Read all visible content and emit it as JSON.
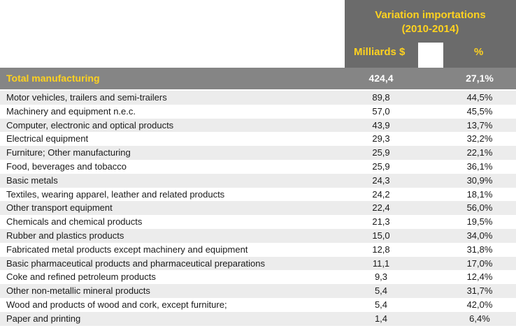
{
  "header": {
    "title_line1": "Variation importations",
    "title_line2": "(2010-2014)",
    "col_value": "Milliards $",
    "col_pct": "%"
  },
  "total": {
    "label": "Total manufacturing",
    "value": "424,4",
    "pct": "27,1%"
  },
  "rows": [
    {
      "label": "Motor vehicles, trailers and semi-trailers",
      "value": "89,8",
      "pct": "44,5%"
    },
    {
      "label": "Machinery and equipment n.e.c.",
      "value": "57,0",
      "pct": "45,5%"
    },
    {
      "label": "Computer, electronic and optical products",
      "value": "43,9",
      "pct": "13,7%"
    },
    {
      "label": "Electrical equipment",
      "value": "29,3",
      "pct": "32,2%"
    },
    {
      "label": "Furniture; Other manufacturing",
      "value": "25,9",
      "pct": "22,1%"
    },
    {
      "label": "Food, beverages and tobacco",
      "value": "25,9",
      "pct": "36,1%"
    },
    {
      "label": "Basic metals",
      "value": "24,3",
      "pct": "30,9%"
    },
    {
      "label": "Textiles, wearing apparel, leather and related products",
      "value": "24,2",
      "pct": "18,1%"
    },
    {
      "label": "Other transport equipment",
      "value": "22,4",
      "pct": "56,0%"
    },
    {
      "label": "Chemicals and chemical products",
      "value": "21,3",
      "pct": "19,5%"
    },
    {
      "label": "Rubber and plastics products",
      "value": "15,0",
      "pct": "34,0%"
    },
    {
      "label": "Fabricated metal products except machinery and equipment",
      "value": "12,8",
      "pct": "31,8%"
    },
    {
      "label": "Basic pharmaceutical products and pharmaceutical preparations",
      "value": "11,1",
      "pct": "17,0%"
    },
    {
      "label": "Coke and refined petroleum products",
      "value": "9,3",
      "pct": "12,4%"
    },
    {
      "label": "Other non-metallic mineral products",
      "value": "5,4",
      "pct": "31,7%"
    },
    {
      "label": "Wood and products of wood and cork, except furniture;",
      "value": "5,4",
      "pct": "42,0%"
    },
    {
      "label": "Paper and printing",
      "value": "1,4",
      "pct": "6,4%"
    }
  ]
}
